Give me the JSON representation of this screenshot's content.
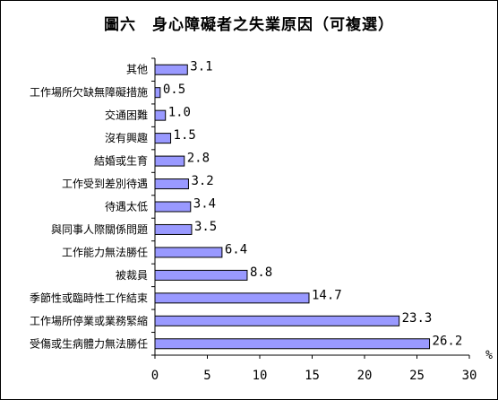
{
  "chart_data": {
    "type": "bar",
    "orientation": "horizontal",
    "title": "圖六　身心障礙者之失業原因（可複選）",
    "unit": "%",
    "xlim": [
      0,
      30
    ],
    "ticks": [
      "0",
      "5",
      "10",
      "15",
      "20",
      "25",
      "30"
    ],
    "bar_color": "#9999ff",
    "categories": [
      "其他",
      "工作場所欠缺無障礙措施",
      "交通困難",
      "沒有興趣",
      "結婚或生育",
      "工作受到差別待遇",
      "待遇太低",
      "與同事人際關係問題",
      "工作能力無法勝任",
      "被裁員",
      "季節性或臨時性工作結束",
      "工作場所停業或業務緊縮",
      "受傷或生病體力無法勝任"
    ],
    "values": [
      3.1,
      0.5,
      1.0,
      1.5,
      2.8,
      3.2,
      3.4,
      3.5,
      6.4,
      8.8,
      14.7,
      23.3,
      26.2
    ],
    "value_labels": [
      "3.1",
      "0.5",
      "1.0",
      "1.5",
      "2.8",
      "3.2",
      "3.4",
      "3.5",
      "6.4",
      "8.8",
      "14.7",
      "23.3",
      "26.2"
    ]
  }
}
